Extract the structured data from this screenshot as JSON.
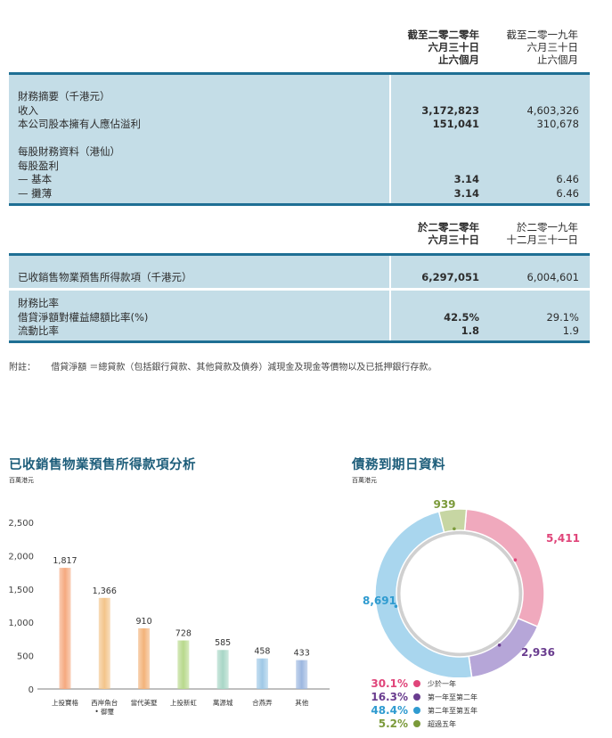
{
  "table": {
    "head1": {
      "col1": [
        "截至二零二零年",
        "六月三十日",
        "止六個月"
      ],
      "col2": [
        "截至二零一九年",
        "六月三十日",
        "止六個月"
      ]
    },
    "block1": {
      "rows": [
        {
          "label": "財務摘要（千港元）",
          "v1": "",
          "v2": ""
        },
        {
          "label": "收入",
          "v1": "3,172,823",
          "v2": "4,603,326"
        },
        {
          "label": "本公司股本擁有人應佔溢利",
          "v1": "151,041",
          "v2": "310,678"
        },
        {
          "label": "",
          "v1": "",
          "v2": ""
        },
        {
          "label": "每股財務資料（港仙）",
          "v1": "",
          "v2": ""
        },
        {
          "label": "每股盈利",
          "v1": "",
          "v2": ""
        },
        {
          "label": "— 基本",
          "v1": "3.14",
          "v2": "6.46"
        },
        {
          "label": "— 攤薄",
          "v1": "3.14",
          "v2": "6.46"
        }
      ]
    },
    "head2": {
      "col1": [
        "於二零二零年",
        "六月三十日"
      ],
      "col2": [
        "於二零一九年",
        "十二月三十一日"
      ]
    },
    "block2": {
      "rows": [
        {
          "label": "已收銷售物業預售所得款項（千港元）",
          "v1": "6,297,051",
          "v2": "6,004,601"
        }
      ]
    },
    "block3": {
      "rows": [
        {
          "label": "財務比率",
          "v1": "",
          "v2": ""
        },
        {
          "label": "借貸淨額對權益總額比率(%)",
          "v1": "42.5%",
          "v2": "29.1%"
        },
        {
          "label": "流動比率",
          "v1": "1.8",
          "v2": "1.9"
        }
      ]
    },
    "note_label": "附註：",
    "note_text": "借貸淨額 ＝總貸款（包括銀行貸款、其他貸款及債券）減現金及現金等價物以及已抵押銀行存款。"
  },
  "chart_data": [
    {
      "type": "bar",
      "title": "已收銷售物業預售所得款項分析",
      "unit": "百萬港元",
      "categories": [
        [
          "上投寶格"
        ],
        [
          "西岸魚台",
          "• 御璽"
        ],
        [
          "當代美墅"
        ],
        [
          "上投新虹"
        ],
        [
          "萬源城"
        ],
        [
          "合燕弄"
        ],
        [
          "其他"
        ]
      ],
      "values": [
        1817,
        1366,
        910,
        728,
        585,
        458,
        433
      ],
      "ylim": [
        0,
        2500
      ],
      "yticks": [
        0,
        500,
        1000,
        1500,
        2000,
        2500
      ],
      "yticklabels": [
        "0",
        "500",
        "1,000",
        "1,500",
        "2,000",
        "2,500"
      ],
      "value_labels": [
        "1,817",
        "1,366",
        "910",
        "728",
        "585",
        "458",
        "433"
      ],
      "colors": [
        "#f5a97f",
        "#f3c48a",
        "#f3b37a",
        "#b8d98c",
        "#a8d6c6",
        "#9ec8e6",
        "#9db7e0"
      ]
    },
    {
      "type": "pie",
      "title": "債務到期日資料",
      "unit": "百萬港元",
      "slices": [
        {
          "label": "少於一年",
          "value": 5411,
          "value_label": "5,411",
          "percent": "30.1%",
          "color": "#f0a9bd",
          "label_color": "#e0457a"
        },
        {
          "label": "第一年至第二年",
          "value": 2936,
          "value_label": "2,936",
          "percent": "16.3%",
          "color": "#b6a6d8",
          "label_color": "#6a3d8f"
        },
        {
          "label": "第二年至第五年",
          "value": 8691,
          "value_label": "8,691",
          "percent": "48.4%",
          "color": "#a9d6ee",
          "label_color": "#2f9bd0"
        },
        {
          "label": "超過五年",
          "value": 939,
          "value_label": "939",
          "percent": "5.2%",
          "color": "#c7d6a3",
          "label_color": "#7b9a3a"
        }
      ]
    }
  ]
}
